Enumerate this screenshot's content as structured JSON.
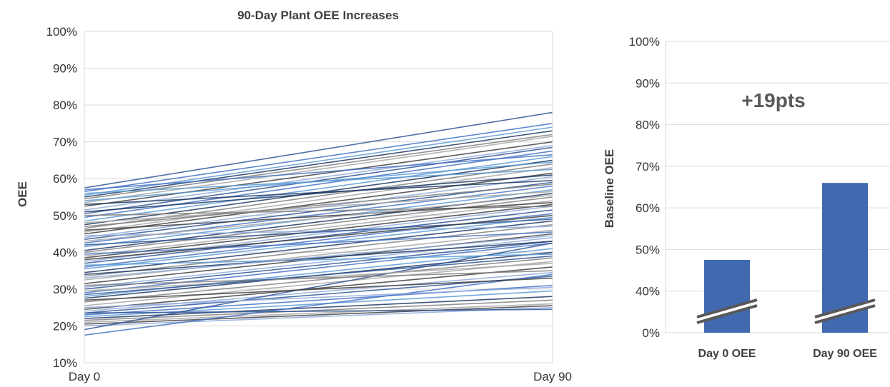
{
  "chart_data": [
    {
      "type": "line",
      "title": "90-Day Plant OEE Increases",
      "ylabel": "OEE",
      "xlabel": "",
      "x": [
        "Day 0",
        "Day 90"
      ],
      "ylim": [
        10,
        100
      ],
      "y_ticks": [
        "10%",
        "20%",
        "30%",
        "40%",
        "50%",
        "60%",
        "70%",
        "80%",
        "90%",
        "100%"
      ],
      "grid": true,
      "legend": "none",
      "series_colors": [
        "#2e5597",
        "#4472c4",
        "#5b9bd5",
        "#1f3864",
        "#7f7f7f",
        "#a6a6a6",
        "#404040",
        "#8faadc"
      ],
      "series": [
        {
          "values": [
            57.5,
            78.0
          ]
        },
        {
          "values": [
            56.5,
            75.0
          ]
        },
        {
          "values": [
            55.5,
            74.0
          ]
        },
        {
          "values": [
            55.0,
            73.0
          ]
        },
        {
          "values": [
            54.5,
            72.0
          ]
        },
        {
          "values": [
            53.5,
            71.5
          ]
        },
        {
          "values": [
            52.5,
            70.0
          ]
        },
        {
          "values": [
            51.5,
            69.0
          ]
        },
        {
          "values": [
            50.5,
            68.5
          ]
        },
        {
          "values": [
            49.5,
            67.5
          ]
        },
        {
          "values": [
            48.5,
            66.0
          ]
        },
        {
          "values": [
            47.5,
            65.0
          ]
        },
        {
          "values": [
            46.5,
            64.0
          ]
        },
        {
          "values": [
            45.5,
            63.0
          ]
        },
        {
          "values": [
            45.0,
            61.5
          ]
        },
        {
          "values": [
            44.0,
            60.5
          ]
        },
        {
          "values": [
            43.5,
            59.0
          ]
        },
        {
          "values": [
            42.5,
            58.0
          ]
        },
        {
          "values": [
            41.5,
            57.0
          ]
        },
        {
          "values": [
            40.5,
            56.0
          ]
        },
        {
          "values": [
            40.0,
            55.0
          ]
        },
        {
          "values": [
            39.0,
            54.0
          ]
        },
        {
          "values": [
            38.5,
            53.0
          ]
        },
        {
          "values": [
            37.5,
            52.5
          ]
        },
        {
          "values": [
            37.0,
            51.5
          ]
        },
        {
          "values": [
            36.0,
            50.5
          ]
        },
        {
          "values": [
            35.5,
            49.5
          ]
        },
        {
          "values": [
            34.5,
            48.5
          ]
        },
        {
          "values": [
            33.5,
            47.5
          ]
        },
        {
          "values": [
            32.5,
            46.0
          ]
        },
        {
          "values": [
            31.5,
            45.0
          ]
        },
        {
          "values": [
            30.5,
            44.0
          ]
        },
        {
          "values": [
            30.0,
            43.0
          ]
        },
        {
          "values": [
            29.0,
            42.5
          ]
        },
        {
          "values": [
            28.0,
            41.0
          ]
        },
        {
          "values": [
            27.5,
            40.0
          ]
        },
        {
          "values": [
            26.5,
            38.5
          ]
        },
        {
          "values": [
            25.5,
            37.5
          ]
        },
        {
          "values": [
            24.5,
            36.0
          ]
        },
        {
          "values": [
            24.0,
            34.5
          ]
        },
        {
          "values": [
            23.5,
            33.5
          ]
        },
        {
          "values": [
            23.0,
            31.0
          ]
        },
        {
          "values": [
            22.5,
            29.5
          ]
        },
        {
          "values": [
            22.0,
            28.0
          ]
        },
        {
          "values": [
            21.5,
            27.0
          ]
        },
        {
          "values": [
            21.0,
            26.0
          ]
        },
        {
          "values": [
            20.5,
            25.5
          ]
        },
        {
          "values": [
            20.0,
            25.0
          ]
        },
        {
          "values": [
            19.0,
            42.5
          ]
        },
        {
          "values": [
            17.5,
            34.0
          ]
        },
        {
          "values": [
            56.0,
            62.5
          ]
        },
        {
          "values": [
            53.0,
            59.5
          ]
        },
        {
          "values": [
            50.0,
            52.5
          ]
        },
        {
          "values": [
            48.0,
            56.5
          ]
        },
        {
          "values": [
            46.0,
            53.5
          ]
        },
        {
          "values": [
            44.5,
            47.0
          ]
        },
        {
          "values": [
            42.0,
            49.0
          ]
        },
        {
          "values": [
            39.5,
            45.5
          ]
        },
        {
          "values": [
            36.5,
            39.5
          ]
        },
        {
          "values": [
            34.0,
            43.0
          ]
        },
        {
          "values": [
            31.0,
            35.0
          ]
        },
        {
          "values": [
            29.5,
            37.0
          ]
        },
        {
          "values": [
            27.0,
            33.0
          ]
        },
        {
          "values": [
            25.0,
            30.5
          ]
        },
        {
          "values": [
            23.5,
            24.5
          ]
        },
        {
          "values": [
            57.0,
            66.5
          ]
        },
        {
          "values": [
            54.0,
            64.5
          ]
        },
        {
          "values": [
            51.0,
            61.0
          ]
        },
        {
          "values": [
            47.0,
            58.5
          ]
        },
        {
          "values": [
            43.0,
            55.5
          ]
        },
        {
          "values": [
            38.0,
            50.0
          ]
        },
        {
          "values": [
            33.0,
            44.5
          ]
        },
        {
          "values": [
            28.5,
            39.0
          ]
        }
      ]
    },
    {
      "type": "bar",
      "categories": [
        "Day 0 OEE",
        "Day 90 OEE"
      ],
      "values": [
        47.5,
        66
      ],
      "ylabel": "Baseline OEE",
      "y_ticks": [
        "0%",
        "40%",
        "50%",
        "60%",
        "70%",
        "80%",
        "90%",
        "100%"
      ],
      "axis_break": "between 0% and 40%",
      "grid": true,
      "annotation": "+19pts",
      "bar_color": "#4169b0",
      "break_color": "#595959"
    }
  ]
}
